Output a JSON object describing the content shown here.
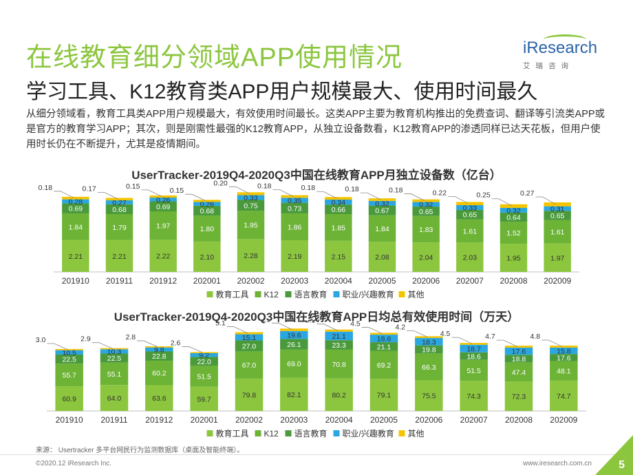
{
  "header": {
    "title": "在线教育细分领域APP使用情况",
    "subtitle": "学习工具、K12教育类APP用户规模最大、使用时间最久",
    "body": "从细分领域看，教育工具类APP用户规模最大，有效使用时间最长。这类APP主要为教育机构推出的免费查词、翻译等引流类APP或是官方的教育学习APP；其次，则是刚需性最强的K12教育APP，从独立设备数看，K12教育APP的渗透同样已达天花板，但用户使用时长仍在不断提升，尤其是疫情期间。"
  },
  "logo": {
    "text": "iResearch",
    "cn": "艾瑞咨询"
  },
  "colors": {
    "tools": "#8cc63f",
    "k12": "#6cb336",
    "language": "#4a9a3c",
    "vocational": "#2aa7e0",
    "other": "#f5c400",
    "accent": "#8cc63f"
  },
  "chart_data": [
    {
      "type": "bar",
      "stacked": true,
      "title": "UserTracker-2019Q4-2020Q3中国在线教育APP月独立设备数（亿台）",
      "categories": [
        "201910",
        "201911",
        "201912",
        "202001",
        "202002",
        "202003",
        "202004",
        "202005",
        "202006",
        "202007",
        "202008",
        "202009"
      ],
      "series": [
        {
          "name": "教育工具",
          "values": [
            2.21,
            2.21,
            2.22,
            2.1,
            2.28,
            2.19,
            2.15,
            2.08,
            2.04,
            2.03,
            1.95,
            1.97
          ]
        },
        {
          "name": "K12",
          "values": [
            1.84,
            1.79,
            1.97,
            1.8,
            1.95,
            1.86,
            1.85,
            1.84,
            1.83,
            1.61,
            1.52,
            1.61
          ]
        },
        {
          "name": "语言教育",
          "values": [
            0.69,
            0.68,
            0.69,
            0.68,
            0.75,
            0.73,
            0.66,
            0.67,
            0.65,
            0.65,
            0.64,
            0.65
          ]
        },
        {
          "name": "职业/兴趣教育",
          "values": [
            0.28,
            0.27,
            0.26,
            0.26,
            0.33,
            0.35,
            0.34,
            0.32,
            0.32,
            0.33,
            0.32,
            0.31
          ]
        },
        {
          "name": "其他",
          "values": [
            0.18,
            0.17,
            0.15,
            0.15,
            0.2,
            0.18,
            0.18,
            0.18,
            0.18,
            0.22,
            0.25,
            0.27
          ]
        }
      ],
      "legend": "bottom"
    },
    {
      "type": "bar",
      "stacked": true,
      "title": "UserTracker-2019Q4-2020Q3中国在线教育APP日均总有效使用时间（万天）",
      "categories": [
        "201910",
        "201911",
        "201912",
        "202001",
        "202002",
        "202003",
        "202004",
        "202005",
        "202006",
        "202007",
        "202008",
        "202009"
      ],
      "series": [
        {
          "name": "教育工具",
          "values": [
            60.9,
            64.0,
            63.6,
            59.7,
            79.8,
            82.1,
            80.2,
            79.1,
            75.5,
            74.3,
            72.3,
            74.7
          ]
        },
        {
          "name": "K12",
          "values": [
            55.7,
            55.1,
            60.2,
            51.5,
            67.0,
            69.0,
            70.8,
            69.2,
            66.3,
            51.5,
            47.4,
            48.1
          ]
        },
        {
          "name": "语言教育",
          "values": [
            22.5,
            22.5,
            22.8,
            22.0,
            27.0,
            26.1,
            23.3,
            21.1,
            19.8,
            18.6,
            18.8,
            17.6
          ]
        },
        {
          "name": "职业/兴趣教育",
          "values": [
            10.5,
            10.3,
            9.8,
            9.2,
            15.1,
            19.6,
            21.1,
            18.6,
            18.3,
            18.7,
            17.6,
            15.8
          ]
        },
        {
          "name": "其他",
          "values": [
            3.0,
            2.9,
            2.8,
            2.6,
            5.1,
            6.1,
            5.1,
            4.5,
            4.2,
            4.5,
            4.7,
            4.8
          ]
        }
      ],
      "legend": "bottom"
    }
  ],
  "footer": {
    "source": "来源： Usertracker 多平台网民行为监测数据库（桌面及智能终端）。",
    "copyright": "©2020.12 iResearch Inc.",
    "url": "www.iresearch.com.cn",
    "page": "5"
  }
}
